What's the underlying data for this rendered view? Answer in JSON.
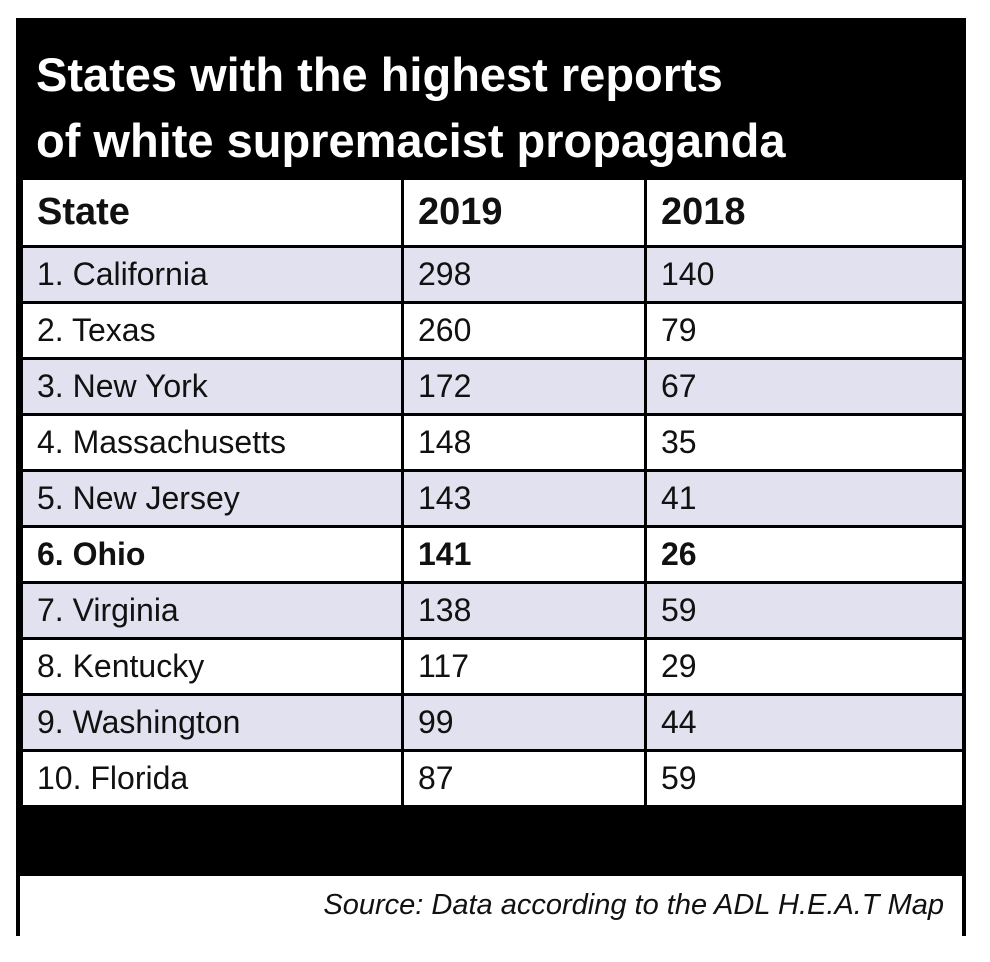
{
  "chart_data": {
    "type": "table",
    "title": "States with the highest reports of white supremacist propaganda",
    "title_lines": [
      "States with the highest reports",
      "of white supremacist propaganda"
    ],
    "columns": [
      "State",
      "2019",
      "2018"
    ],
    "rows": [
      {
        "state": "1. California",
        "y2019": "298",
        "y2018": "140"
      },
      {
        "state": "2. Texas",
        "y2019": "260",
        "y2018": "79"
      },
      {
        "state": "3. New York",
        "y2019": "172",
        "y2018": "67"
      },
      {
        "state": "4. Massachusetts",
        "y2019": "148",
        "y2018": "35"
      },
      {
        "state": "5. New Jersey",
        "y2019": "143",
        "y2018": "41"
      },
      {
        "state": "6. Ohio",
        "y2019": "141",
        "y2018": "26",
        "highlight": true
      },
      {
        "state": "7. Virginia",
        "y2019": "138",
        "y2018": "59"
      },
      {
        "state": "8. Kentucky",
        "y2019": "117",
        "y2018": "29"
      },
      {
        "state": "9. Washington",
        "y2019": "99",
        "y2018": "44"
      },
      {
        "state": "10. Florida",
        "y2019": "87",
        "y2018": "59"
      }
    ],
    "source": "Source: Data according to the ADL H.E.A.T Map"
  },
  "colors": {
    "title_bg": "#000000",
    "title_text": "#ffffff",
    "shaded_row": "#e1e1ef",
    "plain_row": "#ffffff"
  }
}
